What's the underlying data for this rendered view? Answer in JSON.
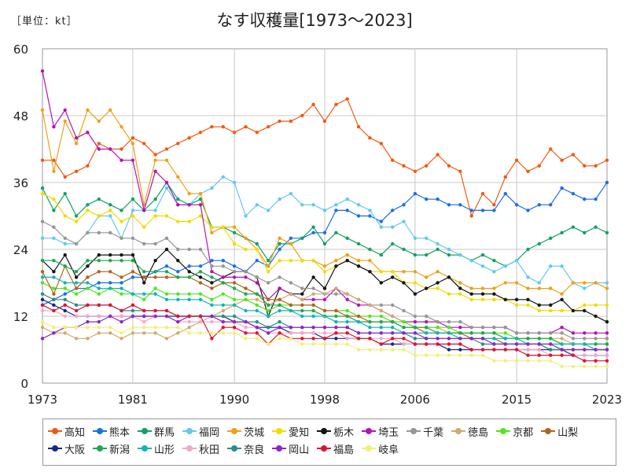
{
  "header": {
    "unit": "［単位：kt］",
    "title": "なす収穫量[1973～2023]"
  },
  "chart_data": {
    "type": "line",
    "title": "なす収穫量[1973～2023]",
    "unit": "kt",
    "x_ticks": [
      "1973",
      "1981",
      "1990",
      "1998",
      "2006",
      "2015",
      "2023"
    ],
    "y_ticks": [
      "0",
      "12",
      "24",
      "36",
      "48",
      "60"
    ],
    "ylim": [
      0,
      60
    ],
    "xlim": [
      1973,
      2023
    ],
    "grid": true,
    "legend_position": "bottom",
    "x": [
      1973,
      1974,
      1975,
      1976,
      1977,
      1978,
      1979,
      1980,
      1981,
      1982,
      1983,
      1984,
      1985,
      1986,
      1987,
      1988,
      1989,
      1990,
      1991,
      1992,
      1993,
      1994,
      1995,
      1996,
      1997,
      1998,
      1999,
      2000,
      2001,
      2002,
      2003,
      2004,
      2005,
      2006,
      2007,
      2008,
      2009,
      2010,
      2011,
      2012,
      2013,
      2014,
      2015,
      2016,
      2017,
      2018,
      2019,
      2020,
      2021,
      2022,
      2023
    ],
    "series": [
      {
        "name": "高知",
        "color": "#f05a14",
        "values": [
          40,
          40,
          37,
          38,
          39,
          43,
          42,
          42,
          44,
          43,
          41,
          42,
          43,
          44,
          45,
          46,
          46,
          45,
          46,
          45,
          46,
          47,
          47,
          48,
          50,
          47,
          50,
          51,
          46,
          44,
          43,
          40,
          39,
          38,
          39,
          41,
          39,
          38,
          30,
          34,
          32,
          37,
          40,
          38,
          39,
          42,
          40,
          41,
          39,
          39,
          40
        ]
      },
      {
        "name": "熊本",
        "color": "#1e6ee6",
        "values": [
          14,
          15,
          16,
          17,
          17,
          18,
          18,
          18,
          19,
          19,
          20,
          21,
          20,
          21,
          21,
          22,
          22,
          21,
          20,
          22,
          21,
          24,
          26,
          26,
          27,
          27,
          31,
          31,
          30,
          30,
          29,
          31,
          32,
          34,
          33,
          33,
          32,
          32,
          31,
          31,
          31,
          34,
          32,
          31,
          32,
          32,
          35,
          34,
          33,
          33,
          36
        ]
      },
      {
        "name": "群馬",
        "color": "#14a064",
        "values": [
          35,
          31,
          34,
          30,
          32,
          33,
          32,
          31,
          33,
          31,
          33,
          36,
          33,
          32,
          33,
          28,
          28,
          27,
          26,
          25,
          22,
          25,
          25,
          26,
          28,
          25,
          27,
          26,
          25,
          24,
          23,
          25,
          24,
          23,
          23,
          24,
          23,
          23,
          22,
          23,
          22,
          21,
          22,
          24,
          25,
          26,
          27,
          28,
          27,
          28,
          27
        ]
      },
      {
        "name": "福岡",
        "color": "#64c8f0",
        "values": [
          26,
          26,
          25,
          25,
          27,
          30,
          30,
          26,
          31,
          31,
          31,
          35,
          32,
          32,
          34,
          35,
          37,
          36,
          30,
          32,
          31,
          33,
          34,
          32,
          32,
          31,
          32,
          33,
          32,
          31,
          28,
          28,
          29,
          26,
          26,
          25,
          24,
          23,
          22,
          21,
          20,
          21,
          22,
          19,
          18,
          21,
          21,
          18,
          17,
          18,
          18
        ]
      },
      {
        "name": "茨城",
        "color": "#f0a014",
        "values": [
          49,
          38,
          47,
          43,
          49,
          47,
          49,
          46,
          43,
          32,
          40,
          40,
          37,
          34,
          34,
          27,
          28,
          28,
          26,
          24,
          21,
          26,
          25,
          22,
          22,
          21,
          22,
          23,
          22,
          22,
          20,
          20,
          20,
          20,
          19,
          20,
          19,
          18,
          17,
          17,
          17,
          18,
          18,
          17,
          17,
          17,
          16,
          18,
          18,
          18,
          17
        ]
      },
      {
        "name": "愛知",
        "color": "#f0dc00",
        "values": [
          34,
          33,
          30,
          29,
          31,
          30,
          31,
          29,
          30,
          28,
          30,
          30,
          29,
          29,
          30,
          28,
          28,
          25,
          24,
          24,
          20,
          22,
          22,
          22,
          22,
          20,
          21,
          22,
          21,
          20,
          20,
          20,
          18,
          18,
          17,
          17,
          16,
          16,
          15,
          15,
          15,
          15,
          14,
          14,
          13,
          13,
          13,
          13,
          14,
          14,
          14
        ]
      },
      {
        "name": "栃木",
        "color": "#141414",
        "values": [
          22,
          20,
          23,
          19,
          21,
          23,
          23,
          23,
          23,
          18,
          22,
          24,
          22,
          20,
          19,
          18,
          19,
          20,
          20,
          19,
          12,
          17,
          16,
          16,
          19,
          17,
          21,
          22,
          21,
          20,
          18,
          19,
          18,
          16,
          17,
          18,
          19,
          17,
          16,
          16,
          16,
          15,
          15,
          15,
          14,
          14,
          15,
          13,
          13,
          12,
          11
        ]
      },
      {
        "name": "埼玉",
        "color": "#b414b4",
        "values": [
          56,
          46,
          49,
          44,
          45,
          42,
          42,
          40,
          40,
          31,
          38,
          36,
          32,
          32,
          32,
          20,
          19,
          19,
          19,
          18,
          15,
          17,
          16,
          15,
          15,
          15,
          17,
          15,
          14,
          14,
          13,
          12,
          11,
          11,
          11,
          11,
          10,
          10,
          10,
          10,
          10,
          10,
          9,
          9,
          9,
          9,
          10,
          9,
          9,
          9,
          9
        ]
      },
      {
        "name": "千葉",
        "color": "#969696",
        "values": [
          29,
          28,
          26,
          25,
          27,
          27,
          27,
          26,
          26,
          25,
          25,
          26,
          24,
          24,
          24,
          21,
          21,
          20,
          20,
          19,
          18,
          19,
          18,
          17,
          17,
          16,
          16,
          16,
          15,
          14,
          14,
          14,
          13,
          12,
          12,
          11,
          11,
          11,
          10,
          10,
          10,
          10,
          9,
          9,
          9,
          9,
          9,
          8,
          8,
          8,
          8
        ]
      },
      {
        "name": "徳島",
        "color": "#d2aa6e",
        "values": [
          10,
          9,
          9,
          8,
          8,
          9,
          9,
          8,
          9,
          9,
          9,
          8,
          9,
          10,
          11,
          12,
          13,
          14,
          15,
          15,
          14,
          15,
          16,
          15,
          16,
          16,
          17,
          16,
          15,
          14,
          13,
          12,
          11,
          10,
          10,
          10,
          9,
          9,
          9,
          9,
          9,
          8,
          8,
          8,
          8,
          8,
          8,
          7,
          7,
          7,
          7
        ]
      },
      {
        "name": "京都",
        "color": "#50e61e",
        "values": [
          18,
          17,
          17,
          16,
          17,
          16,
          17,
          16,
          16,
          15,
          17,
          16,
          16,
          16,
          16,
          15,
          16,
          15,
          15,
          14,
          13,
          14,
          14,
          14,
          14,
          13,
          13,
          13,
          12,
          12,
          12,
          11,
          11,
          10,
          10,
          10,
          10,
          9,
          9,
          9,
          9,
          9,
          8,
          8,
          8,
          8,
          7,
          7,
          7,
          7,
          7
        ]
      },
      {
        "name": "山梨",
        "color": "#b4641e",
        "values": [
          20,
          16,
          21,
          17,
          19,
          20,
          20,
          19,
          20,
          19,
          19,
          19,
          19,
          19,
          18,
          17,
          18,
          18,
          17,
          16,
          15,
          15,
          14,
          14,
          14,
          13,
          13,
          12,
          12,
          11,
          11,
          11,
          10,
          10,
          9,
          9,
          9,
          9,
          8,
          8,
          8,
          7,
          7,
          7,
          7,
          6,
          6,
          6,
          6,
          6,
          6
        ]
      },
      {
        "name": "大阪",
        "color": "#14288c",
        "values": [
          15,
          14,
          13,
          12,
          12,
          12,
          12,
          12,
          12,
          12,
          12,
          12,
          12,
          12,
          12,
          12,
          12,
          11,
          11,
          10,
          10,
          10,
          9,
          9,
          9,
          8,
          8,
          8,
          8,
          8,
          7,
          7,
          7,
          7,
          7,
          7,
          6,
          6,
          6,
          6,
          6,
          6,
          6,
          6,
          6,
          6,
          6,
          5,
          5,
          5,
          5
        ]
      },
      {
        "name": "新潟",
        "color": "#1eaa50",
        "values": [
          22,
          22,
          21,
          20,
          22,
          22,
          22,
          22,
          22,
          20,
          20,
          20,
          19,
          19,
          20,
          19,
          18,
          17,
          16,
          16,
          14,
          14,
          13,
          13,
          13,
          12,
          12,
          12,
          11,
          11,
          11,
          11,
          10,
          10,
          10,
          9,
          9,
          9,
          9,
          9,
          9,
          8,
          8,
          8,
          8,
          8,
          7,
          7,
          7,
          7,
          7
        ]
      },
      {
        "name": "山形",
        "color": "#14b4b4",
        "values": [
          19,
          19,
          18,
          18,
          18,
          17,
          17,
          17,
          16,
          16,
          16,
          15,
          15,
          15,
          15,
          14,
          14,
          14,
          13,
          13,
          12,
          13,
          13,
          12,
          12,
          12,
          11,
          11,
          11,
          10,
          10,
          10,
          9,
          9,
          9,
          9,
          9,
          8,
          8,
          8,
          8,
          8,
          8,
          7,
          7,
          7,
          7,
          7,
          7,
          6,
          6
        ]
      },
      {
        "name": "秋田",
        "color": "#f0aac8",
        "values": [
          13,
          13,
          12,
          12,
          12,
          12,
          12,
          12,
          12,
          11,
          12,
          12,
          11,
          11,
          11,
          11,
          11,
          11,
          10,
          10,
          9,
          9,
          9,
          9,
          9,
          9,
          9,
          8,
          8,
          8,
          8,
          8,
          7,
          7,
          7,
          7,
          7,
          7,
          6,
          6,
          6,
          6,
          6,
          6,
          6,
          5,
          5,
          5,
          5,
          5,
          5
        ]
      },
      {
        "name": "奈良",
        "color": "#2d8c8c",
        "values": [
          16,
          15,
          15,
          14,
          14,
          14,
          14,
          13,
          13,
          13,
          13,
          13,
          12,
          12,
          12,
          12,
          12,
          12,
          11,
          11,
          10,
          11,
          10,
          10,
          10,
          10,
          10,
          10,
          9,
          9,
          9,
          9,
          9,
          8,
          8,
          8,
          8,
          8,
          8,
          7,
          7,
          7,
          7,
          7,
          7,
          6,
          6,
          6,
          6,
          6,
          6
        ]
      },
      {
        "name": "岡山",
        "color": "#8c28c8",
        "values": [
          8,
          9,
          10,
          10,
          11,
          11,
          12,
          11,
          12,
          12,
          12,
          12,
          11,
          12,
          12,
          12,
          11,
          11,
          11,
          10,
          9,
          10,
          10,
          10,
          10,
          10,
          10,
          10,
          9,
          9,
          9,
          9,
          9,
          9,
          8,
          8,
          8,
          8,
          8,
          8,
          7,
          7,
          7,
          7,
          7,
          7,
          6,
          6,
          6,
          6,
          6
        ]
      },
      {
        "name": "福島",
        "color": "#dc1432",
        "values": [
          14,
          13,
          14,
          13,
          14,
          14,
          14,
          13,
          14,
          13,
          13,
          13,
          12,
          12,
          12,
          8,
          10,
          10,
          9,
          9,
          7,
          9,
          8,
          8,
          8,
          8,
          9,
          9,
          8,
          8,
          7,
          8,
          8,
          7,
          7,
          7,
          7,
          7,
          6,
          6,
          6,
          6,
          6,
          5,
          5,
          5,
          5,
          5,
          4,
          4,
          4
        ]
      },
      {
        "name": "岐阜",
        "color": "#f0f078",
        "values": [
          11,
          10,
          10,
          10,
          10,
          10,
          10,
          9,
          10,
          10,
          10,
          10,
          10,
          9,
          9,
          9,
          9,
          9,
          8,
          8,
          7,
          8,
          8,
          7,
          7,
          7,
          7,
          7,
          6,
          6,
          6,
          6,
          6,
          5,
          5,
          5,
          5,
          5,
          5,
          5,
          4,
          4,
          4,
          4,
          4,
          4,
          3,
          3,
          3,
          3,
          3
        ]
      }
    ]
  }
}
